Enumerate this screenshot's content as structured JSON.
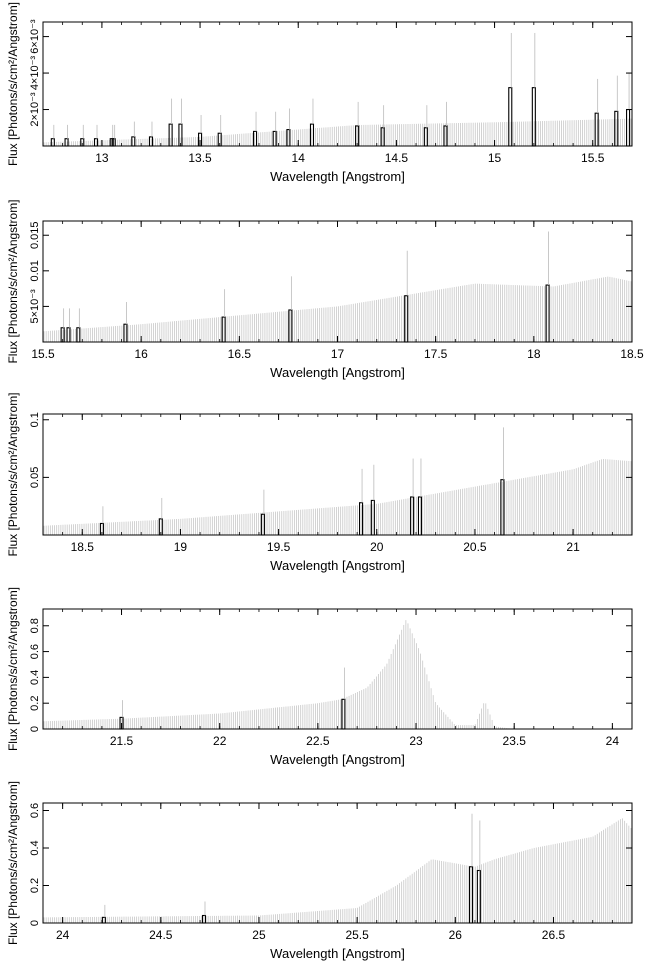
{
  "chart_data": [
    {
      "type": "bar",
      "xlabel": "Wavelength [Angstrom]",
      "ylabel": "Flux [Photons/s/cm²/Angstrom]",
      "xlim": [
        12.7,
        15.7
      ],
      "ylim": [
        0,
        0.0068
      ],
      "xticks": [
        13,
        13.5,
        14,
        14.5,
        15,
        15.5
      ],
      "xtick_labels": [
        "13",
        "13.5",
        "14",
        "14.5",
        "15",
        "15.5"
      ],
      "yticks": [
        0.002,
        0.004,
        0.006
      ],
      "ytick_labels": [
        "2×10⁻³",
        "4×10⁻³",
        "6×10⁻³"
      ],
      "continuum": [
        [
          12.7,
          0.0002
        ],
        [
          13.5,
          0.0005
        ],
        [
          14.3,
          0.00115
        ],
        [
          15.0,
          0.0013
        ],
        [
          15.7,
          0.0015
        ]
      ],
      "highlighted": [
        [
          12.75,
          0.0004
        ],
        [
          12.82,
          0.0004
        ],
        [
          12.9,
          0.0004
        ],
        [
          12.97,
          0.0004
        ],
        [
          13.05,
          0.0004
        ],
        [
          13.06,
          0.0004
        ],
        [
          13.16,
          0.0005
        ],
        [
          13.25,
          0.0005
        ],
        [
          13.35,
          0.0012
        ],
        [
          13.4,
          0.0012
        ],
        [
          13.5,
          0.0007
        ],
        [
          13.6,
          0.0007
        ],
        [
          13.78,
          0.0008
        ],
        [
          13.88,
          0.0008
        ],
        [
          13.95,
          0.0009
        ],
        [
          14.07,
          0.0012
        ],
        [
          14.3,
          0.0011
        ],
        [
          14.43,
          0.001
        ],
        [
          14.65,
          0.001
        ],
        [
          14.75,
          0.0011
        ],
        [
          15.08,
          0.0032
        ],
        [
          15.2,
          0.0032
        ],
        [
          15.52,
          0.0018
        ],
        [
          15.62,
          0.0019
        ],
        [
          15.68,
          0.002
        ]
      ]
    },
    {
      "type": "bar",
      "xlabel": "Wavelength [Angstrom]",
      "ylabel": "Flux [Photons/s/cm²/Angstrom]",
      "xlim": [
        15.5,
        18.5
      ],
      "ylim": [
        0,
        0.017
      ],
      "xticks": [
        15.5,
        16,
        16.5,
        17,
        17.5,
        18,
        18.5
      ],
      "xtick_labels": [
        "15.5",
        "16",
        "16.5",
        "17",
        "17.5",
        "18",
        "18.5"
      ],
      "yticks": [
        0.005,
        0.01,
        0.015
      ],
      "ytick_labels": [
        "5×10⁻³",
        "0.01",
        "0.015"
      ],
      "continuum": [
        [
          15.5,
          0.0015
        ],
        [
          16,
          0.0025
        ],
        [
          17,
          0.005
        ],
        [
          17.7,
          0.0082
        ],
        [
          18.1,
          0.0078
        ],
        [
          18.38,
          0.0092
        ],
        [
          18.5,
          0.0085
        ]
      ],
      "highlighted": [
        [
          15.6,
          0.002
        ],
        [
          15.63,
          0.002
        ],
        [
          15.68,
          0.002
        ],
        [
          15.92,
          0.0025
        ],
        [
          16.42,
          0.0035
        ],
        [
          16.76,
          0.0045
        ],
        [
          17.35,
          0.0065
        ],
        [
          18.07,
          0.008
        ]
      ]
    },
    {
      "type": "bar",
      "xlabel": "Wavelength [Angstrom]",
      "ylabel": "Flux [Photons/s/cm²/Angstrom]",
      "xlim": [
        18.3,
        21.3
      ],
      "ylim": [
        0,
        0.105
      ],
      "xticks": [
        18.5,
        19,
        19.5,
        20,
        20.5,
        21
      ],
      "xtick_labels": [
        "18.5",
        "19",
        "19.5",
        "20",
        "20.5",
        "21"
      ],
      "yticks": [
        0.05,
        0.1
      ],
      "ytick_labels": [
        "0.05",
        "0.1"
      ],
      "continuum": [
        [
          18.3,
          0.008
        ],
        [
          19,
          0.014
        ],
        [
          20,
          0.027
        ],
        [
          20.5,
          0.042
        ],
        [
          21,
          0.057
        ],
        [
          21.15,
          0.066
        ],
        [
          21.3,
          0.064
        ]
      ],
      "highlighted": [
        [
          18.6,
          0.01
        ],
        [
          18.9,
          0.014
        ],
        [
          19.42,
          0.018
        ],
        [
          19.92,
          0.028
        ],
        [
          19.98,
          0.03
        ],
        [
          20.18,
          0.033
        ],
        [
          20.22,
          0.033
        ],
        [
          20.64,
          0.048
        ]
      ]
    },
    {
      "type": "bar",
      "xlabel": "Wavelength [Angstrom]",
      "ylabel": "Flux [Photons/s/cm²/Angstrom]",
      "xlim": [
        21.1,
        24.1
      ],
      "ylim": [
        0,
        0.93
      ],
      "xticks": [
        21.5,
        22,
        22.5,
        23,
        23.5,
        24
      ],
      "xtick_labels": [
        "21.5",
        "22",
        "22.5",
        "23",
        "23.5",
        "24"
      ],
      "yticks": [
        0,
        0.2,
        0.4,
        0.6,
        0.8
      ],
      "ytick_labels": [
        "0",
        "0.2",
        "0.4",
        "0.6",
        "0.8"
      ],
      "continuum": [
        [
          21.1,
          0.06
        ],
        [
          21.5,
          0.08
        ],
        [
          22,
          0.12
        ],
        [
          22.5,
          0.2
        ],
        [
          22.62,
          0.23
        ],
        [
          22.75,
          0.32
        ],
        [
          22.85,
          0.5
        ],
        [
          22.95,
          0.85
        ],
        [
          23.02,
          0.6
        ],
        [
          23.1,
          0.2
        ],
        [
          23.2,
          0.03
        ],
        [
          23.3,
          0.03
        ],
        [
          23.35,
          0.22
        ],
        [
          23.4,
          0.02
        ],
        [
          23.5,
          0.0
        ],
        [
          24.1,
          0.0
        ]
      ],
      "highlighted": [
        [
          21.5,
          0.09
        ],
        [
          22.63,
          0.23
        ]
      ]
    },
    {
      "type": "bar",
      "xlabel": "Wavelength [Angstrom]",
      "ylabel": "Flux [Photons/s/cm²/Angstrom]",
      "xlim": [
        23.9,
        26.9
      ],
      "ylim": [
        0,
        0.64
      ],
      "xticks": [
        24,
        24.5,
        25,
        25.5,
        26,
        26.5
      ],
      "xtick_labels": [
        "24",
        "24.5",
        "25",
        "25.5",
        "26",
        "26.5"
      ],
      "yticks": [
        0,
        0.2,
        0.4,
        0.6
      ],
      "ytick_labels": [
        "0",
        "0.2",
        "0.4",
        "0.6"
      ],
      "continuum": [
        [
          23.9,
          0.03
        ],
        [
          25,
          0.04
        ],
        [
          25.5,
          0.08
        ],
        [
          25.7,
          0.2
        ],
        [
          25.88,
          0.34
        ],
        [
          26.1,
          0.3
        ],
        [
          26.2,
          0.34
        ],
        [
          26.4,
          0.4
        ],
        [
          26.7,
          0.46
        ],
        [
          26.85,
          0.56
        ],
        [
          26.9,
          0.5
        ]
      ],
      "highlighted": [
        [
          24.21,
          0.03
        ],
        [
          24.72,
          0.04
        ],
        [
          26.08,
          0.3
        ],
        [
          26.12,
          0.28
        ]
      ]
    }
  ]
}
